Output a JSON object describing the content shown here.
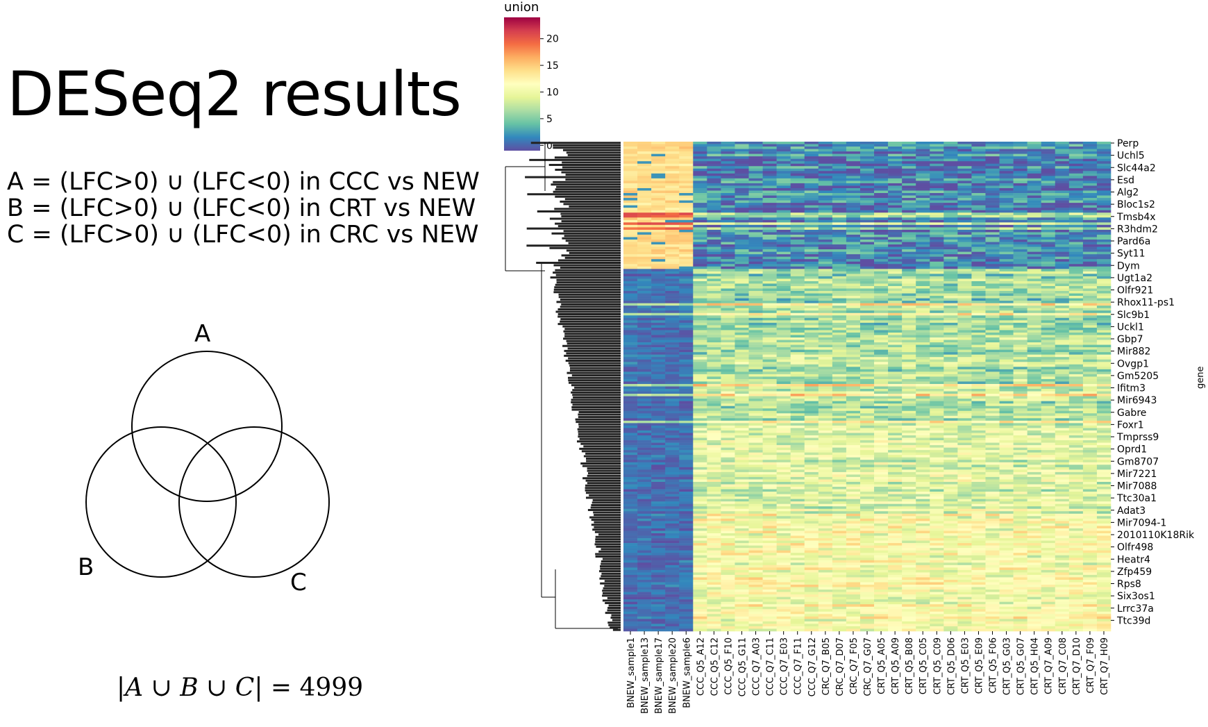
{
  "slide": {
    "title": "DESeq2 results",
    "equations": [
      "A = (LFC>0) ∪ (LFC<0) in CCC vs NEW",
      "B = (LFC>0) ∪ (LFC<0) in CRT vs NEW",
      "C = (LFC>0) ∪ (LFC<0) in CRC vs NEW"
    ],
    "venn": {
      "sets": [
        "A",
        "B",
        "C"
      ]
    },
    "union_formula": {
      "a": "A",
      "b": "B",
      "c": "C",
      "cup": "∪",
      "equals": "=",
      "value": "4999"
    }
  },
  "chart_data": {
    "type": "heatmap",
    "colorbar": {
      "title": "union",
      "ticks": [
        0,
        5,
        10,
        15,
        20
      ],
      "range": [
        -1,
        24
      ],
      "colormap": "Spectral_r",
      "colors": [
        "#5e4fa2",
        "#3288bd",
        "#66c2a5",
        "#abdda4",
        "#e6f598",
        "#ffffbf",
        "#fee08b",
        "#fdae61",
        "#f46d43",
        "#d53e4f",
        "#9e0142"
      ]
    },
    "ylabel": "gene",
    "gene_tick_labels": [
      "Perp",
      "Uchl5",
      "Slc44a2",
      "Esd",
      "Alg2",
      "Bloc1s2",
      "Tmsb4x",
      "R3hdm2",
      "Pard6a",
      "Syt11",
      "Dym",
      "Ugt1a2",
      "Olfr921",
      "Rhox11-ps1",
      "Slc9b1",
      "Uckl1",
      "Gbp7",
      "Mir882",
      "Ovgp1",
      "Gm5205",
      "Ifitm3",
      "Mir6943",
      "Gabre",
      "Foxr1",
      "Tmprss9",
      "Oprd1",
      "Gm8707",
      "Mir7221",
      "Mir7088",
      "Ttc30a1",
      "Adat3",
      "Mir7094-1",
      "2010110K18Rik",
      "Olfr498",
      "Heatr4",
      "Zfp459",
      "Rps8",
      "Six3os1",
      "Lrrc37a",
      "Ttc39d"
    ],
    "sample_tick_labels": [
      "BNEW_sample1",
      "BNEW_sample13",
      "BNEW_sample17",
      "BNEW_sample20",
      "BNEW_sample6",
      "CCC_Q5_A12",
      "CCC_Q5_C12",
      "CCC_Q5_F10",
      "CCC_Q5_G11",
      "CCC_Q7_A03",
      "CCC_Q7_C11",
      "CCC_Q7_E03",
      "CCC_Q7_F11",
      "CCC_Q7_G12",
      "CRC_Q7_B05",
      "CRC_Q7_D07",
      "CRC_Q7_F05",
      "CRC_Q7_G07",
      "CRT_Q5_A05",
      "CRT_Q5_A09",
      "CRT_Q5_B08",
      "CRT_Q5_C05",
      "CRT_Q5_C09",
      "CRT_Q5_D06",
      "CRT_Q5_E03",
      "CRT_Q5_E09",
      "CRT_Q5_F06",
      "CRT_Q5_G03",
      "CRT_Q5_G07",
      "CRT_Q5_H04",
      "CRT_Q7_A09",
      "CRT_Q7_C08",
      "CRT_Q7_D10",
      "CRT_Q7_F09",
      "CRT_Q7_H09"
    ],
    "row_clusters": [
      {
        "fraction": 0.26,
        "bnew_level": 14,
        "other_level": 1.5
      },
      {
        "fraction": 0.12,
        "bnew_level": 0.5,
        "other_level": 6
      },
      {
        "fraction": 0.2,
        "bnew_level": 0.5,
        "other_level": 7
      },
      {
        "fraction": 0.18,
        "bnew_level": 0.5,
        "other_level": 9
      },
      {
        "fraction": 0.24,
        "bnew_level": 0.5,
        "other_level": 11
      }
    ],
    "dendrogram": "hierarchical clustering of genes (rows)"
  }
}
